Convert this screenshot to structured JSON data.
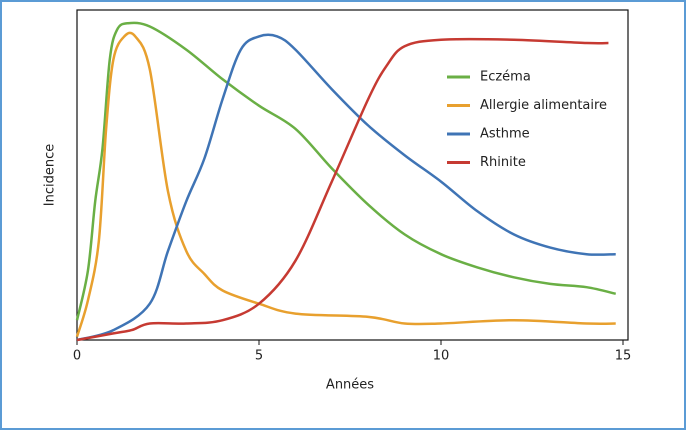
{
  "chart_data": {
    "type": "line",
    "xlabel": "Années",
    "ylabel": "Incidence",
    "xlim": [
      0,
      15
    ],
    "xticks": [
      0,
      5,
      10,
      15
    ],
    "ylim": [
      0,
      100
    ],
    "legend": "upper right",
    "series": [
      {
        "name": "Eczéma",
        "color": "#6aaf45",
        "x": [
          0,
          0.3,
          0.5,
          0.7,
          0.9,
          1.1,
          1.4,
          2,
          3,
          4,
          5,
          6,
          7,
          8,
          9,
          10,
          11,
          12,
          13,
          14,
          14.8
        ],
        "values": [
          6,
          21,
          42,
          58,
          85,
          94,
          96,
          95,
          88,
          79,
          71,
          64,
          52,
          41,
          32,
          26,
          22,
          19,
          17,
          16,
          14
        ]
      },
      {
        "name": "Allergie alimentaire",
        "color": "#e8a02e",
        "x": [
          0,
          0.3,
          0.6,
          0.8,
          1,
          1.3,
          1.6,
          2,
          2.5,
          3,
          3.5,
          4,
          5,
          6,
          8,
          9,
          10,
          12,
          14,
          14.8
        ],
        "values": [
          1,
          12,
          30,
          64,
          85,
          92,
          92,
          82,
          45,
          27,
          20,
          15,
          11,
          8,
          7,
          5,
          5,
          6,
          5,
          5
        ]
      },
      {
        "name": "Asthme",
        "color": "#3f74b5",
        "x": [
          0,
          1,
          2,
          2.5,
          3,
          3.5,
          4,
          4.5,
          5,
          5.5,
          6,
          7,
          8,
          9,
          10,
          11,
          12,
          13,
          14,
          14.8
        ],
        "values": [
          0,
          3,
          11,
          27,
          42,
          55,
          73,
          88,
          92,
          92,
          88,
          76,
          65,
          56,
          48,
          39,
          32,
          28,
          26,
          26
        ]
      },
      {
        "name": "Rhinite",
        "color": "#c63a32",
        "x": [
          0,
          1,
          1.5,
          2,
          3,
          4,
          5,
          6,
          7,
          8,
          8.5,
          9,
          10,
          12,
          14,
          14.6
        ],
        "values": [
          0,
          2,
          3,
          5,
          5,
          6,
          11,
          24,
          48,
          73,
          83,
          89,
          91,
          91,
          90,
          90
        ]
      }
    ]
  }
}
